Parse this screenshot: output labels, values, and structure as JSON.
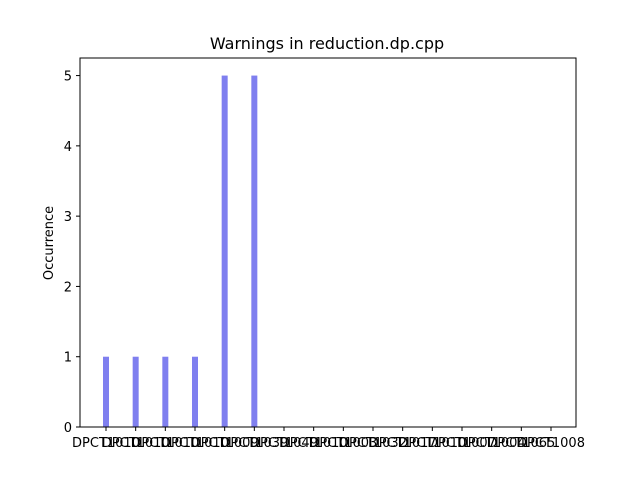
{
  "chart_data": {
    "type": "bar",
    "title": "Warnings in reduction.dp.cpp",
    "xlabel": "",
    "ylabel": "Occurrence",
    "categories": [
      "DPCT1010",
      "DPCT1012",
      "DPCT1017",
      "DPCT1022",
      "DPCT1039",
      "DPCT1049",
      "DPCT1060",
      "DPCT1065",
      "DPCT1083",
      "DPCT1084",
      "DPCT1007",
      "DPCT1005",
      "DPCT1001",
      "DPCT1003",
      "DPCT1011",
      "DPCT1008"
    ],
    "tick_labels": [
      "DPCT1010",
      "DPCT1010",
      "DPCT1010",
      "DPCT1010",
      "DPCT1009",
      "DPCT1039",
      "DPCT1049",
      "DPCT1010",
      "DPCT1003",
      "DPCT1032",
      "DPCT1017",
      "DPCT1010",
      "DPCT1007",
      "DPCT1004",
      "DPCT1065",
      "DPCT1008"
    ],
    "values": [
      1,
      1,
      1,
      1,
      5,
      5,
      0,
      0,
      0,
      0,
      0,
      0,
      0,
      0,
      0,
      0
    ],
    "ylim": [
      0,
      5.25
    ],
    "yticks": [
      0,
      1,
      2,
      3,
      4,
      5
    ],
    "bar_color": "#7f7fef",
    "grid": false,
    "legend": "none"
  }
}
